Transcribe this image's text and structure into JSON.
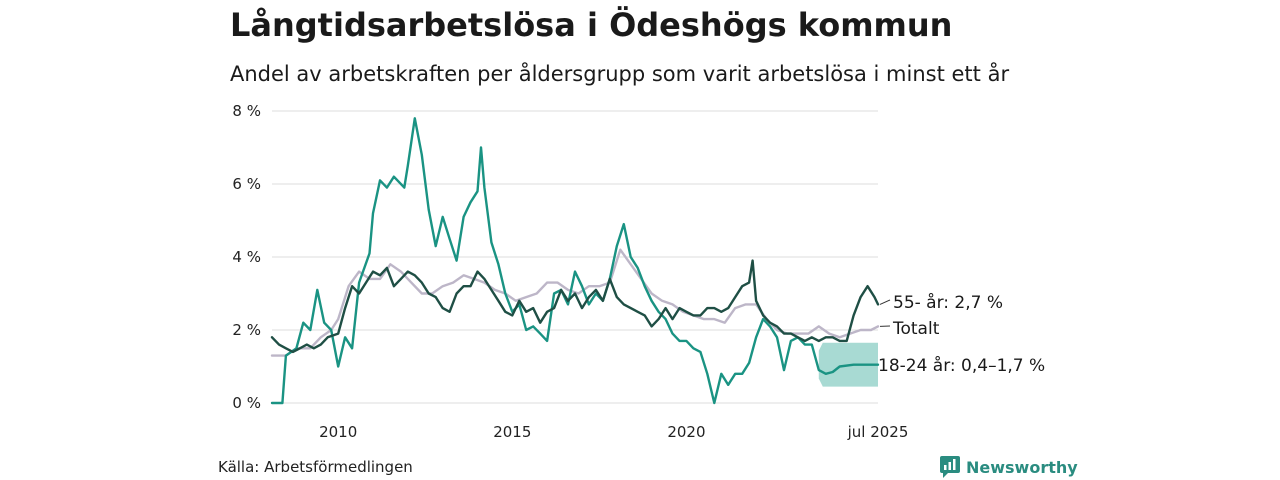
{
  "title": "Långtidsarbetslösa i Ödeshögs kommun",
  "subtitle": "Andel av arbetskraften per åldersgrupp som varit arbetslösa i minst ett år",
  "source": "Källa: Arbetsförmedlingen",
  "brand": "Newsworthy",
  "colors": {
    "older": "#1f4f45",
    "total": "#bdb6c8",
    "youth": "#1a9383",
    "youth_band": "#a3d8d1",
    "grid": "#dddddd",
    "brand": "#2a8c80"
  },
  "chart_data": {
    "type": "line",
    "x_ticks": [
      {
        "x": 2010,
        "label": "2010"
      },
      {
        "x": 2015,
        "label": "2015"
      },
      {
        "x": 2020,
        "label": "2020"
      },
      {
        "x": 2025.5,
        "label": "jul 2025"
      }
    ],
    "y_ticks": [
      {
        "y": 0,
        "label": "0 %"
      },
      {
        "y": 2,
        "label": "2 %"
      },
      {
        "y": 4,
        "label": "4 %"
      },
      {
        "y": 6,
        "label": "6 %"
      },
      {
        "y": 8,
        "label": "8 %"
      }
    ],
    "xlim": [
      2008.1,
      2025.5
    ],
    "ylim": [
      0,
      8
    ],
    "series": [
      {
        "key": "total",
        "label": "Totalt",
        "points": [
          [
            2008.1,
            1.3
          ],
          [
            2008.5,
            1.3
          ],
          [
            2008.8,
            1.5
          ],
          [
            2009.2,
            1.5
          ],
          [
            2009.5,
            1.8
          ],
          [
            2009.8,
            2.0
          ],
          [
            2010.0,
            2.3
          ],
          [
            2010.3,
            3.2
          ],
          [
            2010.6,
            3.6
          ],
          [
            2010.9,
            3.4
          ],
          [
            2011.2,
            3.4
          ],
          [
            2011.5,
            3.8
          ],
          [
            2011.8,
            3.6
          ],
          [
            2012.1,
            3.3
          ],
          [
            2012.4,
            3.0
          ],
          [
            2012.7,
            3.0
          ],
          [
            2013.0,
            3.2
          ],
          [
            2013.3,
            3.3
          ],
          [
            2013.6,
            3.5
          ],
          [
            2013.9,
            3.4
          ],
          [
            2014.2,
            3.3
          ],
          [
            2014.5,
            3.1
          ],
          [
            2014.8,
            3.0
          ],
          [
            2015.1,
            2.8
          ],
          [
            2015.4,
            2.9
          ],
          [
            2015.7,
            3.0
          ],
          [
            2016.0,
            3.3
          ],
          [
            2016.3,
            3.3
          ],
          [
            2016.6,
            3.1
          ],
          [
            2016.9,
            3.0
          ],
          [
            2017.2,
            3.2
          ],
          [
            2017.5,
            3.2
          ],
          [
            2017.8,
            3.3
          ],
          [
            2018.1,
            4.2
          ],
          [
            2018.4,
            3.8
          ],
          [
            2018.7,
            3.4
          ],
          [
            2019.0,
            3.0
          ],
          [
            2019.3,
            2.8
          ],
          [
            2019.6,
            2.7
          ],
          [
            2019.9,
            2.5
          ],
          [
            2020.2,
            2.4
          ],
          [
            2020.5,
            2.3
          ],
          [
            2020.8,
            2.3
          ],
          [
            2021.1,
            2.2
          ],
          [
            2021.4,
            2.6
          ],
          [
            2021.7,
            2.7
          ],
          [
            2022.0,
            2.7
          ],
          [
            2022.3,
            2.3
          ],
          [
            2022.6,
            2.0
          ],
          [
            2022.9,
            1.9
          ],
          [
            2023.2,
            1.9
          ],
          [
            2023.5,
            1.9
          ],
          [
            2023.8,
            2.1
          ],
          [
            2024.1,
            1.9
          ],
          [
            2024.4,
            1.8
          ],
          [
            2024.7,
            1.9
          ],
          [
            2025.0,
            2.0
          ],
          [
            2025.3,
            2.0
          ],
          [
            2025.5,
            2.1
          ]
        ]
      },
      {
        "key": "youth",
        "label": "18-24 år",
        "points": [
          [
            2008.1,
            0.0
          ],
          [
            2008.4,
            0.0
          ],
          [
            2008.5,
            1.3
          ],
          [
            2008.8,
            1.5
          ],
          [
            2009.0,
            2.2
          ],
          [
            2009.2,
            2.0
          ],
          [
            2009.4,
            3.1
          ],
          [
            2009.6,
            2.2
          ],
          [
            2009.8,
            2.0
          ],
          [
            2010.0,
            1.0
          ],
          [
            2010.2,
            1.8
          ],
          [
            2010.4,
            1.5
          ],
          [
            2010.6,
            3.3
          ],
          [
            2010.9,
            4.1
          ],
          [
            2011.0,
            5.2
          ],
          [
            2011.2,
            6.1
          ],
          [
            2011.4,
            5.9
          ],
          [
            2011.6,
            6.2
          ],
          [
            2011.9,
            5.9
          ],
          [
            2012.0,
            6.5
          ],
          [
            2012.2,
            7.8
          ],
          [
            2012.4,
            6.8
          ],
          [
            2012.6,
            5.3
          ],
          [
            2012.8,
            4.3
          ],
          [
            2013.0,
            5.1
          ],
          [
            2013.2,
            4.5
          ],
          [
            2013.4,
            3.9
          ],
          [
            2013.6,
            5.1
          ],
          [
            2013.8,
            5.5
          ],
          [
            2014.0,
            5.8
          ],
          [
            2014.1,
            7.0
          ],
          [
            2014.2,
            5.9
          ],
          [
            2014.4,
            4.4
          ],
          [
            2014.6,
            3.8
          ],
          [
            2014.8,
            3.0
          ],
          [
            2015.0,
            2.5
          ],
          [
            2015.2,
            2.7
          ],
          [
            2015.4,
            2.0
          ],
          [
            2015.6,
            2.1
          ],
          [
            2015.8,
            1.9
          ],
          [
            2016.0,
            1.7
          ],
          [
            2016.2,
            3.0
          ],
          [
            2016.4,
            3.1
          ],
          [
            2016.6,
            2.7
          ],
          [
            2016.8,
            3.6
          ],
          [
            2017.0,
            3.2
          ],
          [
            2017.2,
            2.7
          ],
          [
            2017.4,
            3.0
          ],
          [
            2017.6,
            2.8
          ],
          [
            2017.8,
            3.4
          ],
          [
            2018.0,
            4.3
          ],
          [
            2018.2,
            4.9
          ],
          [
            2018.4,
            4.0
          ],
          [
            2018.6,
            3.7
          ],
          [
            2018.8,
            3.2
          ],
          [
            2019.0,
            2.8
          ],
          [
            2019.2,
            2.5
          ],
          [
            2019.4,
            2.3
          ],
          [
            2019.6,
            1.9
          ],
          [
            2019.8,
            1.7
          ],
          [
            2020.0,
            1.7
          ],
          [
            2020.2,
            1.5
          ],
          [
            2020.4,
            1.4
          ],
          [
            2020.6,
            0.8
          ],
          [
            2020.8,
            0.0
          ],
          [
            2021.0,
            0.8
          ],
          [
            2021.2,
            0.5
          ],
          [
            2021.4,
            0.8
          ],
          [
            2021.6,
            0.8
          ],
          [
            2021.8,
            1.1
          ],
          [
            2022.0,
            1.8
          ],
          [
            2022.2,
            2.3
          ],
          [
            2022.4,
            2.1
          ],
          [
            2022.6,
            1.8
          ],
          [
            2022.8,
            0.9
          ],
          [
            2023.0,
            1.7
          ],
          [
            2023.2,
            1.8
          ],
          [
            2023.4,
            1.6
          ],
          [
            2023.6,
            1.6
          ],
          [
            2023.8,
            0.9
          ],
          [
            2024.0,
            0.8
          ],
          [
            2024.2,
            0.85
          ],
          [
            2024.4,
            1.0
          ],
          [
            2024.8,
            1.05
          ],
          [
            2025.2,
            1.05
          ],
          [
            2025.5,
            1.05
          ]
        ],
        "band_start": 2023.8,
        "band_low": 0.45,
        "band_high": 1.65
      },
      {
        "key": "older",
        "label": "55- år",
        "points": [
          [
            2008.1,
            1.8
          ],
          [
            2008.3,
            1.6
          ],
          [
            2008.5,
            1.5
          ],
          [
            2008.7,
            1.4
          ],
          [
            2008.9,
            1.5
          ],
          [
            2009.1,
            1.6
          ],
          [
            2009.3,
            1.5
          ],
          [
            2009.5,
            1.6
          ],
          [
            2009.7,
            1.8
          ],
          [
            2010.0,
            1.9
          ],
          [
            2010.2,
            2.6
          ],
          [
            2010.4,
            3.2
          ],
          [
            2010.6,
            3.0
          ],
          [
            2010.8,
            3.3
          ],
          [
            2011.0,
            3.6
          ],
          [
            2011.2,
            3.5
          ],
          [
            2011.4,
            3.7
          ],
          [
            2011.6,
            3.2
          ],
          [
            2011.8,
            3.4
          ],
          [
            2012.0,
            3.6
          ],
          [
            2012.2,
            3.5
          ],
          [
            2012.4,
            3.3
          ],
          [
            2012.6,
            3.0
          ],
          [
            2012.8,
            2.9
          ],
          [
            2013.0,
            2.6
          ],
          [
            2013.2,
            2.5
          ],
          [
            2013.4,
            3.0
          ],
          [
            2013.6,
            3.2
          ],
          [
            2013.8,
            3.2
          ],
          [
            2014.0,
            3.6
          ],
          [
            2014.2,
            3.4
          ],
          [
            2014.4,
            3.1
          ],
          [
            2014.6,
            2.8
          ],
          [
            2014.8,
            2.5
          ],
          [
            2015.0,
            2.4
          ],
          [
            2015.2,
            2.8
          ],
          [
            2015.4,
            2.5
          ],
          [
            2015.6,
            2.6
          ],
          [
            2015.8,
            2.2
          ],
          [
            2016.0,
            2.5
          ],
          [
            2016.2,
            2.6
          ],
          [
            2016.4,
            3.1
          ],
          [
            2016.6,
            2.8
          ],
          [
            2016.8,
            3.0
          ],
          [
            2017.0,
            2.6
          ],
          [
            2017.2,
            2.9
          ],
          [
            2017.4,
            3.1
          ],
          [
            2017.6,
            2.8
          ],
          [
            2017.8,
            3.4
          ],
          [
            2018.0,
            2.9
          ],
          [
            2018.2,
            2.7
          ],
          [
            2018.4,
            2.6
          ],
          [
            2018.6,
            2.5
          ],
          [
            2018.8,
            2.4
          ],
          [
            2019.0,
            2.1
          ],
          [
            2019.2,
            2.3
          ],
          [
            2019.4,
            2.6
          ],
          [
            2019.6,
            2.3
          ],
          [
            2019.8,
            2.6
          ],
          [
            2020.0,
            2.5
          ],
          [
            2020.2,
            2.4
          ],
          [
            2020.4,
            2.4
          ],
          [
            2020.6,
            2.6
          ],
          [
            2020.8,
            2.6
          ],
          [
            2021.0,
            2.5
          ],
          [
            2021.2,
            2.6
          ],
          [
            2021.4,
            2.9
          ],
          [
            2021.6,
            3.2
          ],
          [
            2021.8,
            3.3
          ],
          [
            2021.9,
            3.9
          ],
          [
            2022.0,
            2.8
          ],
          [
            2022.2,
            2.4
          ],
          [
            2022.4,
            2.2
          ],
          [
            2022.6,
            2.1
          ],
          [
            2022.8,
            1.9
          ],
          [
            2023.0,
            1.9
          ],
          [
            2023.2,
            1.8
          ],
          [
            2023.4,
            1.7
          ],
          [
            2023.6,
            1.8
          ],
          [
            2023.8,
            1.7
          ],
          [
            2024.0,
            1.8
          ],
          [
            2024.2,
            1.8
          ],
          [
            2024.4,
            1.7
          ],
          [
            2024.6,
            1.7
          ],
          [
            2024.8,
            2.4
          ],
          [
            2025.0,
            2.9
          ],
          [
            2025.2,
            3.2
          ],
          [
            2025.4,
            2.9
          ],
          [
            2025.5,
            2.7
          ]
        ]
      }
    ],
    "end_labels": [
      {
        "series": "older",
        "text": "55- år: 2,7 %"
      },
      {
        "series": "total",
        "text": "Totalt"
      },
      {
        "series": "youth",
        "text": "18-24 år: 0,4–1,7 %"
      }
    ]
  }
}
